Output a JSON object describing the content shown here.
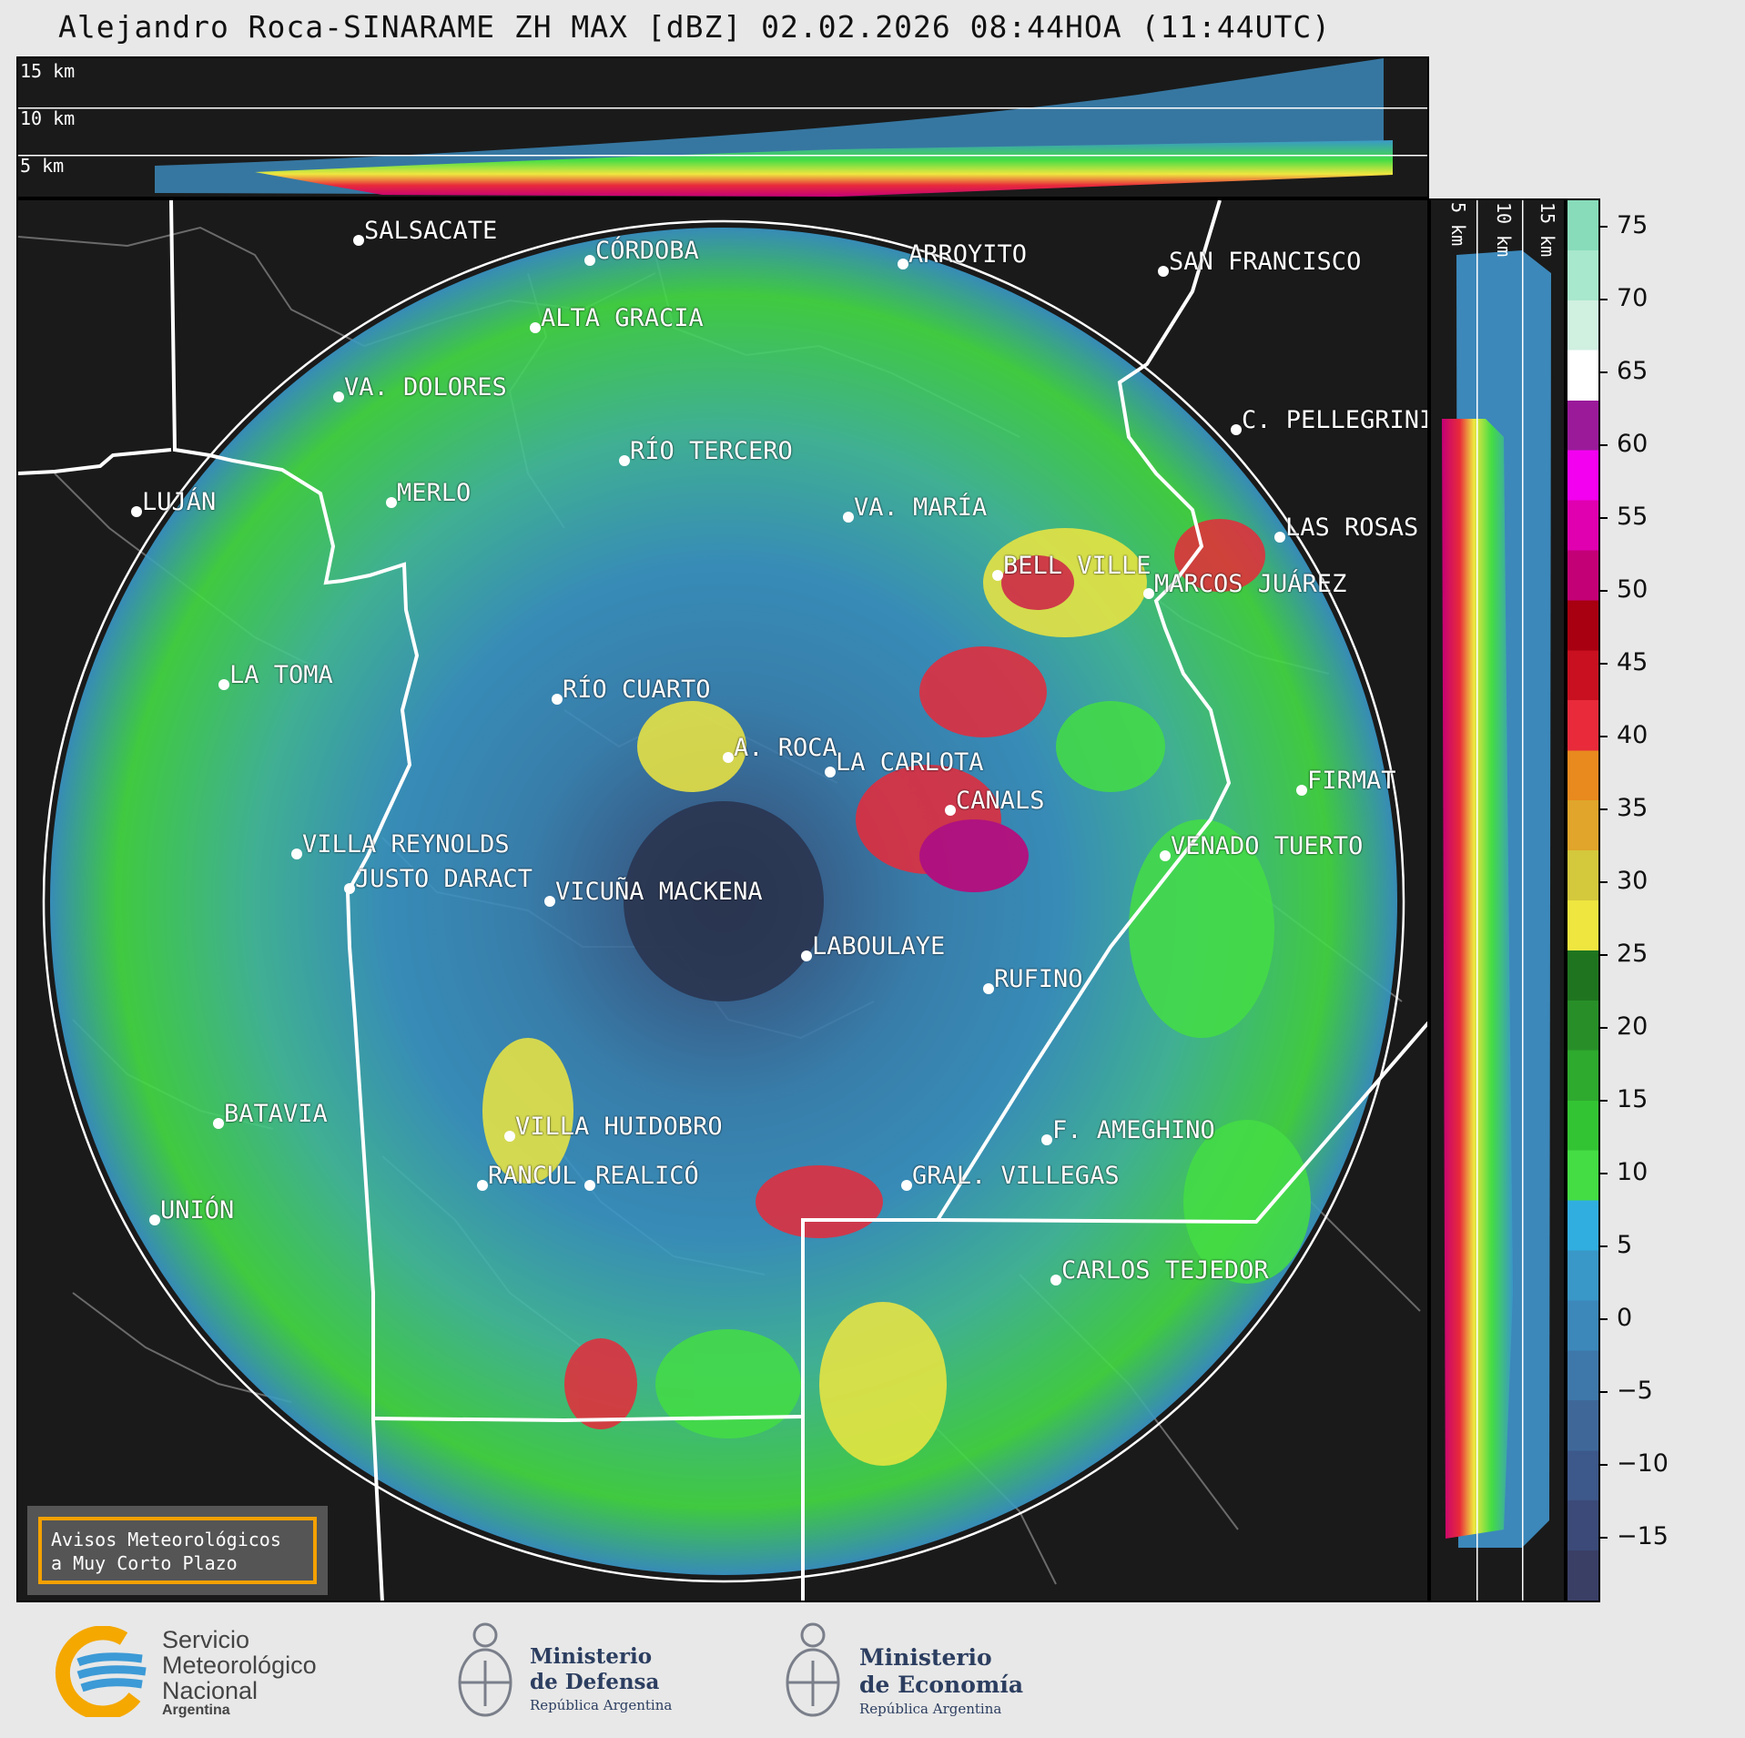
{
  "title": "Alejandro Roca-SINARAME ZH MAX [dBZ] 02.02.2026 08:44HOA (11:44UTC)",
  "top_panel": {
    "km_labels": [
      "15 km",
      "10 km",
      "5 km"
    ]
  },
  "side_panel": {
    "km_labels": [
      "5 km",
      "10 km",
      "15 km"
    ]
  },
  "map": {
    "radar_site": "A. ROCA",
    "cities": [
      {
        "name": "SALSACATE"
      },
      {
        "name": "CÓRDOBA"
      },
      {
        "name": "ARROYITO"
      },
      {
        "name": "SAN FRANCISCO"
      },
      {
        "name": "ALTA GRACIA"
      },
      {
        "name": "VA. DOLORES"
      },
      {
        "name": "C. PELLEGRINI"
      },
      {
        "name": "RÍO TERCERO"
      },
      {
        "name": "LUJÁN"
      },
      {
        "name": "MERLO"
      },
      {
        "name": "VA. MARÍA"
      },
      {
        "name": "LAS ROSAS"
      },
      {
        "name": "BELL VILLE"
      },
      {
        "name": "MARCOS JUÁREZ"
      },
      {
        "name": "LA TOMA"
      },
      {
        "name": "RÍO CUARTO"
      },
      {
        "name": "A. ROCA"
      },
      {
        "name": "LA CARLOTA"
      },
      {
        "name": "FIRMAT"
      },
      {
        "name": "CANALS"
      },
      {
        "name": "VILLA REYNOLDS"
      },
      {
        "name": "VENADO TUERTO"
      },
      {
        "name": "JUSTO DARACT"
      },
      {
        "name": "VICUÑA MACKENA"
      },
      {
        "name": "LABOULAYE"
      },
      {
        "name": "RUFINO"
      },
      {
        "name": "BATAVIA"
      },
      {
        "name": "VILLA HUIDOBRO"
      },
      {
        "name": "F. AMEGHINO"
      },
      {
        "name": "RANCUL"
      },
      {
        "name": "REALICÓ"
      },
      {
        "name": "GRAL. VILLEGAS"
      },
      {
        "name": "UNIÓN"
      },
      {
        "name": "CARLOS TEJEDOR"
      }
    ],
    "warning_box": [
      "Avisos Meteorológicos",
      "a Muy Corto Plazo"
    ]
  },
  "colorbar": {
    "unit": "dBZ",
    "ticks": [
      "75",
      "70",
      "65",
      "60",
      "55",
      "50",
      "45",
      "40",
      "35",
      "30",
      "25",
      "20",
      "15",
      "10",
      "5",
      "0",
      "−5",
      "−10",
      "−15"
    ],
    "colors": [
      "#3a3f66",
      "#3b4a78",
      "#3d588a",
      "#3f6899",
      "#3e78aa",
      "#3c88ba",
      "#3a98c8",
      "#30aee0",
      "#44dd44",
      "#33c433",
      "#2eaa2e",
      "#288f28",
      "#1f751f",
      "#efe640",
      "#d4c83c",
      "#e0a52a",
      "#e88a1e",
      "#e82a3a",
      "#c81020",
      "#a80010",
      "#c40077",
      "#e000b0",
      "#f300f0",
      "#9a1a9a",
      "#ffffff",
      "#d0f0e0",
      "#a8e8cc",
      "#88dcba"
    ]
  },
  "footer": {
    "smn": [
      "Servicio",
      "Meteorológico",
      "Nacional",
      "Argentina"
    ],
    "defensa": [
      "Ministerio",
      "de Defensa",
      "República Argentina"
    ],
    "economia": [
      "Ministerio",
      "de Economía",
      "República Argentina"
    ]
  }
}
